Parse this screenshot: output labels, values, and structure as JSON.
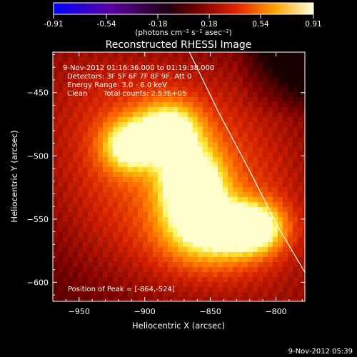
{
  "colorbar": {
    "ticks": [
      "-0.91",
      "-0.54",
      "-0.18",
      "0.18",
      "0.54",
      "0.91"
    ],
    "unit_label": "(photons cm⁻² s⁻¹ asec⁻²)",
    "range": [
      -0.91,
      0.91
    ]
  },
  "annotations": {
    "time_range": "9-Nov-2012 01:16:36.000 to 01:19:38.000",
    "detectors": "Detectors: 3F 5F 6F 7F 8F 9F, Att 0",
    "energy": "Energy Range: 3.0 - 6.0 keV",
    "clean": "Clean",
    "total_counts": "Total counts: 2.53E+05",
    "peak": "Position of Peak = [-864,-524]"
  },
  "footer": {
    "timestamp": "9-Nov-2012 05:39"
  },
  "chart_data": {
    "type": "heatmap",
    "title": "Reconstructed RHESSI Image",
    "xlabel": "Heliocentric X (arcsec)",
    "ylabel": "Heliocentric Y (arcsec)",
    "xlim": [
      -970,
      -778
    ],
    "ylim": [
      -615,
      -418
    ],
    "x_ticks": [
      -950,
      -900,
      -850,
      -800
    ],
    "y_ticks": [
      -450,
      -500,
      -550,
      -600
    ],
    "x_tick_labels": [
      "−950",
      "−900",
      "−850",
      "−800"
    ],
    "y_tick_labels": [
      "−450",
      "−500",
      "−550",
      "−600"
    ],
    "peak": [
      -864,
      -524
    ],
    "sources": [
      {
        "x": -864,
        "y": -524,
        "intensity": 1.0,
        "sx": 16,
        "sy": 20
      },
      {
        "x": -882,
        "y": -481,
        "intensity": 0.85,
        "sx": 16,
        "sy": 15
      },
      {
        "x": -912,
        "y": -492,
        "intensity": 0.72,
        "sx": 14,
        "sy": 14
      },
      {
        "x": -818,
        "y": -557,
        "intensity": 0.88,
        "sx": 16,
        "sy": 13
      },
      {
        "x": -850,
        "y": -560,
        "intensity": 0.62,
        "sx": 24,
        "sy": 18
      }
    ],
    "limb_curve": [
      [
        -866,
        -418
      ],
      [
        -844,
        -465
      ],
      [
        -820,
        -512
      ],
      [
        -798,
        -557
      ],
      [
        -778,
        -592
      ]
    ]
  }
}
